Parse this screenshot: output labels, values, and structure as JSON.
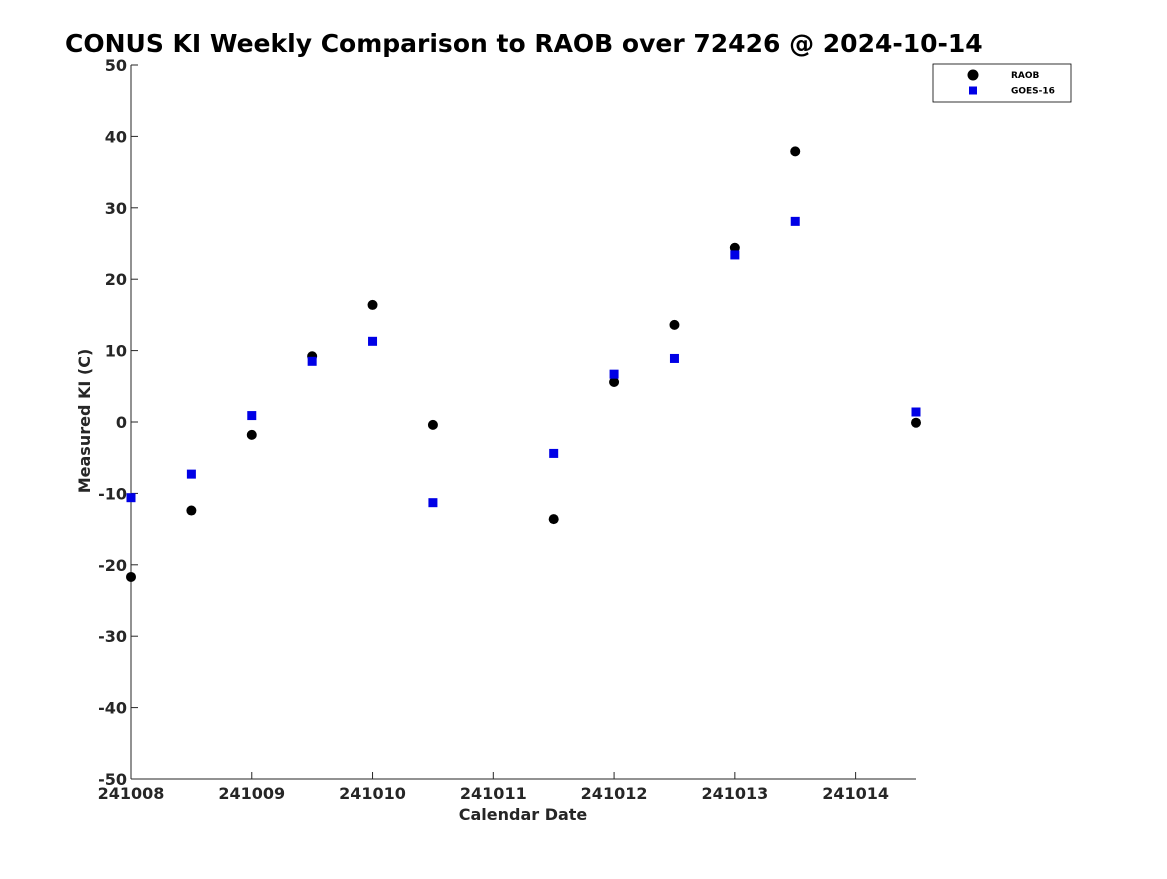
{
  "chart_data": {
    "type": "scatter",
    "title": "CONUS KI Weekly Comparison to RAOB over 72426 @ 2024-10-14",
    "xlabel": "Calendar Date",
    "ylabel": "Measured KI (C)",
    "x_ticks": [
      {
        "value": 0,
        "label": "241008"
      },
      {
        "value": 1,
        "label": "241009"
      },
      {
        "value": 2,
        "label": "241010"
      },
      {
        "value": 3,
        "label": "241011"
      },
      {
        "value": 4,
        "label": "241012"
      },
      {
        "value": 5,
        "label": "241013"
      },
      {
        "value": 6,
        "label": "241014"
      }
    ],
    "xlim": [
      0,
      6.5
    ],
    "ylim": [
      -50,
      50
    ],
    "y_ticks": [
      -50,
      -40,
      -30,
      -20,
      -10,
      0,
      10,
      20,
      30,
      40,
      50
    ],
    "grid": false,
    "legend_position": "top-right",
    "series": [
      {
        "name": "RAOB",
        "marker": "circle",
        "color": "#000000",
        "points": [
          {
            "x": 0.0,
            "y": -21.7
          },
          {
            "x": 0.5,
            "y": -12.4
          },
          {
            "x": 1.0,
            "y": -1.8
          },
          {
            "x": 1.5,
            "y": 9.2
          },
          {
            "x": 2.0,
            "y": 16.4
          },
          {
            "x": 2.5,
            "y": -0.4
          },
          {
            "x": 3.5,
            "y": -13.6
          },
          {
            "x": 4.0,
            "y": 5.6
          },
          {
            "x": 4.5,
            "y": 13.6
          },
          {
            "x": 5.0,
            "y": 24.4
          },
          {
            "x": 5.5,
            "y": 37.9
          },
          {
            "x": 6.5,
            "y": -0.1
          }
        ]
      },
      {
        "name": "GOES-16",
        "marker": "square",
        "color": "#0000e6",
        "points": [
          {
            "x": 0.0,
            "y": -10.6
          },
          {
            "x": 0.5,
            "y": -7.3
          },
          {
            "x": 1.0,
            "y": 0.9
          },
          {
            "x": 1.5,
            "y": 8.5
          },
          {
            "x": 2.0,
            "y": 11.3
          },
          {
            "x": 2.5,
            "y": -11.3
          },
          {
            "x": 3.5,
            "y": -4.4
          },
          {
            "x": 4.0,
            "y": 6.7
          },
          {
            "x": 4.5,
            "y": 8.9
          },
          {
            "x": 5.0,
            "y": 23.4
          },
          {
            "x": 5.5,
            "y": 28.1
          },
          {
            "x": 6.5,
            "y": 1.4
          }
        ]
      }
    ]
  }
}
